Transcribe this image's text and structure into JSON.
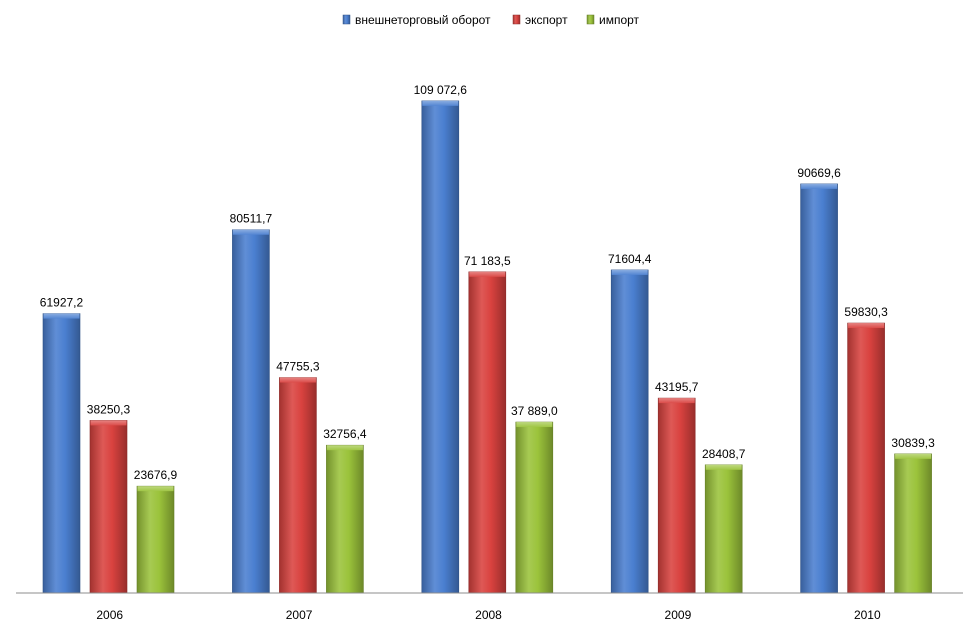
{
  "chart_data": {
    "type": "bar",
    "categories": [
      "2006",
      "2007",
      "2008",
      "2009",
      "2010"
    ],
    "series": [
      {
        "name": "внешнеторговый оборот",
        "color": "#4a7fd0",
        "values": [
          61927.2,
          80511.7,
          109072.6,
          71604.4,
          90669.6
        ],
        "labels": [
          "61927,2",
          "80511,7",
          "109 072,6",
          "71604,4",
          "90669,6"
        ]
      },
      {
        "name": "экспорт",
        "color": "#d9423f",
        "values": [
          38250.3,
          47755.3,
          71183.5,
          43195.7,
          59830.3
        ],
        "labels": [
          "38250,3",
          "47755,3",
          "71 183,5",
          "43195,7",
          "59830,3"
        ]
      },
      {
        "name": "импорт",
        "color": "#9bc33b",
        "values": [
          23676.9,
          32756.4,
          37889.0,
          28408.7,
          30839.3
        ],
        "labels": [
          "23676,9",
          "32756,4",
          "37 889,0",
          "28408,7",
          "30839,3"
        ]
      }
    ],
    "ylim": [
      0,
      125000
    ],
    "legend_position": "top-center",
    "grid": false
  }
}
